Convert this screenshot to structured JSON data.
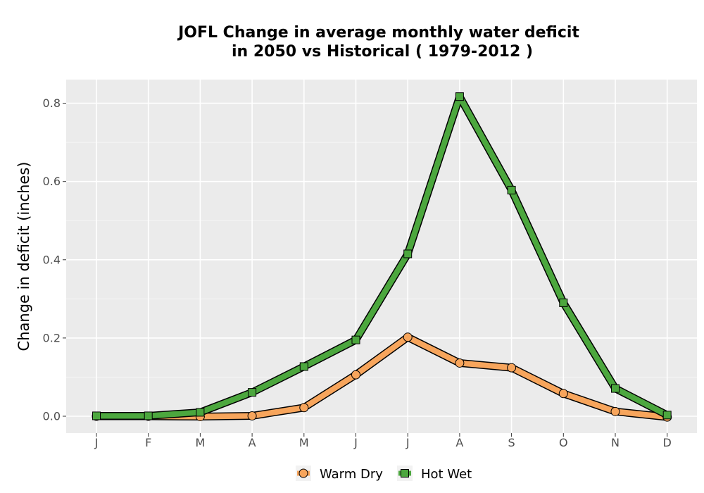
{
  "chart_data": {
    "type": "line",
    "title_line1": "JOFL  Change in average monthly water deficit",
    "title_line2": "in 2050 vs Historical ( 1979-2012 )",
    "xlabel": "",
    "ylabel": "Change in deficit (inches)",
    "categories": [
      "J",
      "F",
      "M",
      "A",
      "M",
      "J",
      "J",
      "A",
      "S",
      "O",
      "N",
      "D"
    ],
    "ylim": [
      -0.04,
      0.86
    ],
    "yticks": [
      0.0,
      0.2,
      0.4,
      0.6,
      0.8
    ],
    "ytick_labels": [
      "0.0",
      "0.2",
      "0.4",
      "0.6",
      "0.8"
    ],
    "grid": true,
    "legend_position": "bottom",
    "series": [
      {
        "name": "Warm Dry",
        "color": "#f7a55c",
        "marker": "circle",
        "values": [
          0.0,
          0.0,
          -0.001,
          0.001,
          0.022,
          0.106,
          0.202,
          0.136,
          0.124,
          0.058,
          0.012,
          -0.002
        ]
      },
      {
        "name": "Hot Wet",
        "color": "#4ca73e",
        "marker": "square",
        "values": [
          0.001,
          0.001,
          0.01,
          0.061,
          0.127,
          0.195,
          0.415,
          0.817,
          0.578,
          0.29,
          0.071,
          0.003
        ]
      }
    ]
  }
}
